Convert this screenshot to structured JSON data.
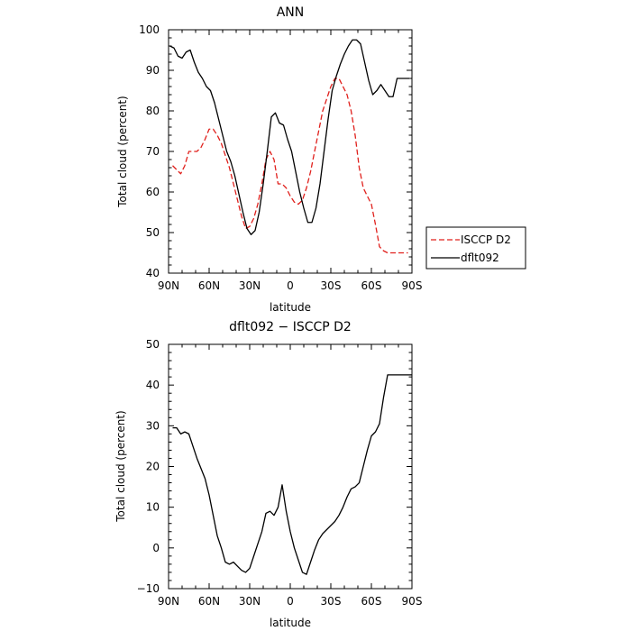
{
  "chart_data": [
    {
      "type": "line",
      "title": "ANN",
      "xlabel": "latitude",
      "ylabel": "Total cloud (percent)",
      "xlim": [
        90,
        -90
      ],
      "ylim": [
        40,
        100
      ],
      "xticks": [
        90,
        60,
        30,
        0,
        -30,
        -60,
        -90
      ],
      "xtick_labels": [
        "90N",
        "60N",
        "30N",
        "0",
        "30S",
        "60S",
        "90S"
      ],
      "yticks": [
        40,
        50,
        60,
        70,
        80,
        90,
        100
      ],
      "ytick_labels": [
        "40",
        "50",
        "60",
        "70",
        "80",
        "90",
        "100"
      ],
      "legend": "outside-right",
      "series": [
        {
          "name": "ISCCP D2",
          "color": "#e0201c",
          "dash": "dashed",
          "x": [
            87,
            84,
            81,
            78,
            75,
            72,
            69,
            66,
            63,
            60,
            57,
            54,
            51,
            48,
            45,
            42,
            39,
            36,
            33,
            30,
            27,
            24,
            21,
            18,
            15,
            12,
            9,
            6,
            3,
            0,
            -3,
            -6,
            -9,
            -12,
            -15,
            -18,
            -21,
            -24,
            -27,
            -30,
            -33,
            -36,
            -39,
            -42,
            -45,
            -48,
            -51,
            -54,
            -57,
            -60,
            -63,
            -66,
            -69,
            -72,
            -75,
            -78,
            -81,
            -84,
            -87
          ],
          "y": [
            66.5,
            65.5,
            64.5,
            66.5,
            70,
            70,
            70,
            71,
            73,
            75.5,
            75.5,
            74,
            72,
            69,
            66,
            62,
            58,
            54,
            51,
            51.5,
            53.5,
            57,
            62,
            68,
            70,
            68,
            62,
            62,
            61,
            59,
            57.5,
            57,
            58,
            61,
            65,
            70,
            75,
            80,
            83,
            86,
            88,
            88,
            86,
            84,
            80,
            74,
            66,
            61,
            59,
            57,
            52,
            46.5,
            45.5,
            45,
            45,
            45,
            45,
            45,
            45
          ]
        },
        {
          "name": "dflt092",
          "color": "#000000",
          "dash": "solid",
          "x": [
            89,
            86,
            83,
            80,
            77,
            74,
            71,
            68,
            65,
            62,
            59,
            56,
            53,
            50,
            47,
            44,
            41,
            38,
            35,
            32,
            29,
            26,
            23,
            20,
            17,
            14,
            11,
            8,
            5,
            2,
            -1,
            -4,
            -7,
            -10,
            -13,
            -16,
            -19,
            -22,
            -25,
            -28,
            -31,
            -34,
            -37,
            -40,
            -43,
            -46,
            -49,
            -52,
            -55,
            -58,
            -61,
            -64,
            -67,
            -70,
            -73,
            -76,
            -79,
            -82,
            -85,
            -88
          ],
          "y": [
            96,
            95.5,
            93.5,
            93,
            94.5,
            95,
            92,
            89.5,
            88,
            86,
            85,
            82,
            78,
            74,
            70,
            67.5,
            64,
            59.5,
            55,
            51,
            49.5,
            50.5,
            55,
            62,
            70,
            78.5,
            79.5,
            77,
            76.5,
            73,
            70,
            65,
            60,
            56,
            52.5,
            52.5,
            56,
            62,
            70,
            78,
            85,
            88.5,
            91.5,
            94,
            96,
            97.5,
            97.5,
            96.5,
            92,
            87.5,
            84,
            85,
            86.5,
            85,
            83.5,
            83.5,
            88,
            88,
            88,
            88
          ]
        }
      ]
    },
    {
      "type": "line",
      "title": "dflt092 − ISCCP D2",
      "xlabel": "latitude",
      "ylabel": "Total cloud (percent)",
      "xlim": [
        90,
        -90
      ],
      "ylim": [
        -10,
        50
      ],
      "xticks": [
        90,
        60,
        30,
        0,
        -30,
        -60,
        -90
      ],
      "xtick_labels": [
        "90N",
        "60N",
        "30N",
        "0",
        "30S",
        "60S",
        "90S"
      ],
      "yticks": [
        -10,
        0,
        10,
        20,
        30,
        40,
        50
      ],
      "ytick_labels": [
        "−10",
        "0",
        "10",
        "20",
        "30",
        "40",
        "50"
      ],
      "series": [
        {
          "color": "#000000",
          "dash": "solid",
          "x": [
            87,
            84,
            81,
            78,
            75,
            72,
            69,
            66,
            63,
            60,
            57,
            54,
            51,
            48,
            45,
            42,
            39,
            36,
            33,
            30,
            27,
            24,
            21,
            18,
            15,
            12,
            9,
            6,
            3,
            0,
            -3,
            -6,
            -9,
            -12,
            -15,
            -18,
            -21,
            -24,
            -27,
            -30,
            -33,
            -36,
            -39,
            -42,
            -45,
            -48,
            -51,
            -54,
            -57,
            -60,
            -63,
            -66,
            -69,
            -72,
            -75,
            -78,
            -81,
            -84,
            -87,
            -90
          ],
          "y": [
            29.5,
            29.5,
            28,
            28.5,
            28,
            25,
            22,
            19.5,
            17,
            13,
            8,
            3,
            0,
            -3.5,
            -4,
            -3.5,
            -4.5,
            -5.5,
            -6,
            -5,
            -2,
            1,
            4,
            8.5,
            9,
            8,
            10,
            15.5,
            9,
            4,
            0,
            -3,
            -6,
            -6.5,
            -3.5,
            -0.5,
            2,
            3.5,
            4.5,
            5.5,
            6.5,
            8,
            10,
            12.5,
            14.5,
            15,
            16,
            20,
            24,
            27.5,
            28.5,
            30.5,
            37,
            42.5,
            42.5,
            42.5,
            42.5,
            42.5,
            42.5,
            42.5
          ]
        }
      ]
    }
  ]
}
